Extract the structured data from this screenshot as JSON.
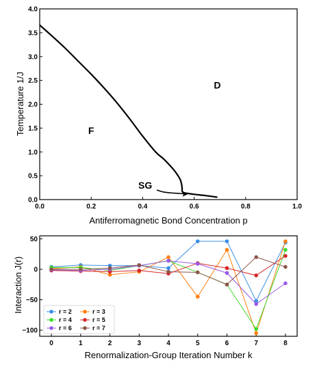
{
  "chart_data": [
    {
      "type": "line",
      "xlabel": "Antiferromagnetic Bond Concentration p",
      "ylabel": "Temperature 1/J",
      "xlim": [
        0,
        1
      ],
      "ylim": [
        0,
        4
      ],
      "xticks": [
        "0.0",
        "0.2",
        "0.4",
        "0.6",
        "0.8",
        "1.0"
      ],
      "yticks": [
        "0.0",
        "0.5",
        "1.0",
        "1.5",
        "2.0",
        "2.5",
        "3.0",
        "3.5",
        "4.0"
      ],
      "grid": false,
      "phase_labels": {
        "F": "F",
        "D": "D",
        "SG": "SG"
      },
      "phase_label_positions_data": {
        "F": [
          0.2,
          1.45
        ],
        "D": [
          0.69,
          2.4
        ],
        "SG": [
          0.41,
          0.3
        ]
      },
      "boundary": {
        "x": [
          0.0,
          0.05,
          0.1,
          0.15,
          0.2,
          0.25,
          0.3,
          0.35,
          0.4,
          0.45,
          0.48,
          0.5,
          0.52,
          0.535,
          0.545,
          0.55,
          0.553,
          0.553,
          0.555,
          0.56,
          0.575,
          0.6,
          0.65,
          0.69
        ],
        "y": [
          3.66,
          3.42,
          3.17,
          2.9,
          2.63,
          2.34,
          2.03,
          1.69,
          1.33,
          1.0,
          0.86,
          0.75,
          0.63,
          0.52,
          0.43,
          0.35,
          0.25,
          0.19,
          0.16,
          0.14,
          0.13,
          0.11,
          0.08,
          0.05
        ]
      },
      "sg_flow_arrow": {
        "x": [
          0.455,
          0.48,
          0.51,
          0.54,
          0.565
        ],
        "y": [
          0.2,
          0.16,
          0.14,
          0.13,
          0.12
        ]
      }
    },
    {
      "type": "line",
      "xlabel": "Renormalization-Group Iteration Number k",
      "ylabel": "Interaction J(r)",
      "xlim": [
        -0.4,
        8.4
      ],
      "ylim": [
        -110,
        55
      ],
      "xticks": [
        "0",
        "1",
        "2",
        "3",
        "4",
        "5",
        "6",
        "7",
        "8"
      ],
      "yticks": [
        "−100",
        "−50",
        "0",
        "50"
      ],
      "grid": false,
      "legend_position": "lower-left",
      "x": [
        0,
        1,
        2,
        3,
        4,
        5,
        6,
        7,
        8
      ],
      "series": [
        {
          "name": "r = 2",
          "color": "#3a8ee6",
          "values": [
            4,
            7,
            6,
            6,
            2,
            46,
            46,
            -52,
            44
          ]
        },
        {
          "name": "r = 3",
          "color": "#ff7f0e",
          "values": [
            1,
            4,
            -9,
            -4,
            20,
            -45,
            32,
            -105,
            46
          ]
        },
        {
          "name": "r = 4",
          "color": "#3ddc2b",
          "values": [
            3,
            3,
            -2,
            6,
            14,
            -5,
            -25,
            -98,
            32
          ]
        },
        {
          "name": "r = 5",
          "color": "#d62728",
          "values": [
            -2,
            -3,
            -4,
            -2,
            -7,
            10,
            2,
            -10,
            22
          ]
        },
        {
          "name": "r = 6",
          "color": "#9a5be6",
          "values": [
            -1,
            -2,
            0,
            6,
            14,
            9,
            -6,
            -57,
            -23
          ]
        },
        {
          "name": "r = 7",
          "color": "#8c564b",
          "values": [
            0,
            0,
            2,
            7,
            -4,
            -5,
            -25,
            20,
            4
          ]
        }
      ]
    }
  ]
}
